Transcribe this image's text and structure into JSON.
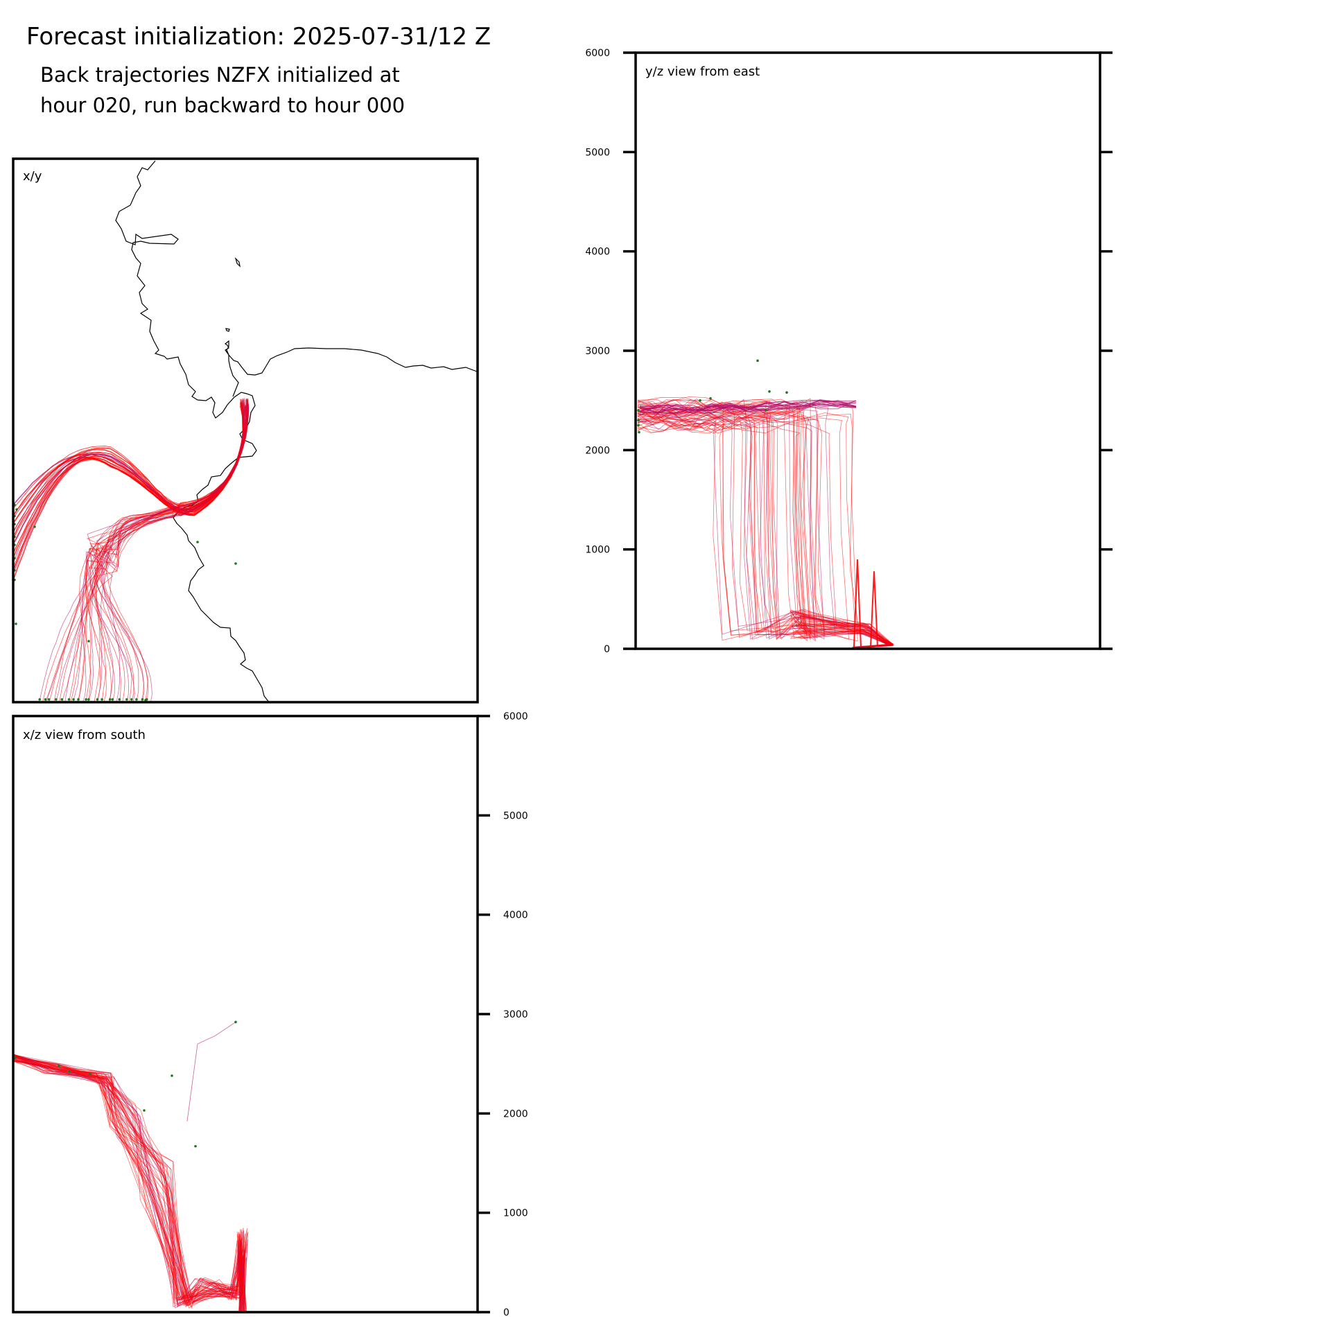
{
  "figure": {
    "title": "Forecast initialization: 2025-07-31/12 Z",
    "subtitle_line1": "Back trajectories NZFX initialized at",
    "subtitle_line2": "hour 020, run backward to hour 000"
  },
  "panels": {
    "xy": {
      "label": "x/y"
    },
    "yz": {
      "label": "y/z view from east"
    },
    "xz": {
      "label": "x/z view from south"
    }
  },
  "colors": {
    "trajectory_red": "#ff0000",
    "trajectory_magenta": "#b0106a",
    "endpoint_green": "#1a7a1a",
    "coastline": "#000000",
    "frame": "#000000"
  },
  "chart_data": [
    {
      "type": "line",
      "panel": "x/y",
      "title": "",
      "description_note": "",
      "xlabel": "",
      "ylabel": ""
    },
    {
      "type": "line",
      "panel": "y/z view from east",
      "xlabel": "",
      "ylabel": "",
      "ylim": [
        0,
        6000
      ],
      "y_ticks": [
        0,
        1000,
        2000,
        3000,
        4000,
        5000,
        6000
      ],
      "y_tick_labels": [
        "0",
        "1000",
        "2000",
        "3000",
        "4000",
        "5000",
        "6000"
      ]
    },
    {
      "type": "line",
      "panel": "x/z view from south",
      "xlabel": "",
      "ylabel": "",
      "ylim": [
        0,
        6000
      ],
      "y_ticks": [
        0,
        1000,
        2000,
        3000,
        4000,
        5000,
        6000
      ],
      "y_tick_labels": [
        "0",
        "1000",
        "2000",
        "3000",
        "4000",
        "5000",
        "6000"
      ]
    }
  ]
}
